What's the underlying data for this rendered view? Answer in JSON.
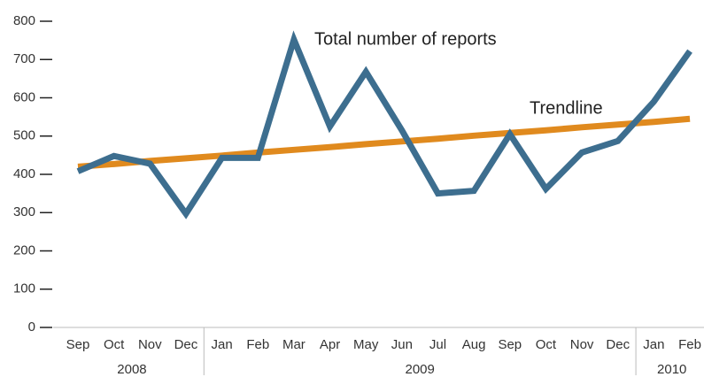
{
  "chart_data": {
    "type": "line",
    "categories": [
      "Sep",
      "Oct",
      "Nov",
      "Dec",
      "Jan",
      "Feb",
      "Mar",
      "Apr",
      "May",
      "Jun",
      "Jul",
      "Aug",
      "Sep",
      "Oct",
      "Nov",
      "Dec",
      "Jan",
      "Feb"
    ],
    "x_groups": [
      {
        "label": "2008",
        "count": 4
      },
      {
        "label": "2009",
        "count": 12
      },
      {
        "label": "2010",
        "count": 2
      }
    ],
    "series": [
      {
        "name": "Total number of reports",
        "color": "#3d6e8f",
        "values": [
          408,
          448,
          428,
          297,
          443,
          443,
          752,
          525,
          668,
          515,
          350,
          357,
          505,
          362,
          457,
          487,
          590,
          722
        ]
      },
      {
        "name": "Trendline",
        "color": "#e08a1e",
        "values": [
          420,
          427,
          435,
          442,
          449,
          457,
          464,
          471,
          479,
          486,
          493,
          501,
          508,
          515,
          523,
          530,
          537,
          545
        ]
      }
    ],
    "ylim": [
      0,
      800
    ],
    "yticks": [
      0,
      100,
      200,
      300,
      400,
      500,
      600,
      700,
      800
    ]
  }
}
